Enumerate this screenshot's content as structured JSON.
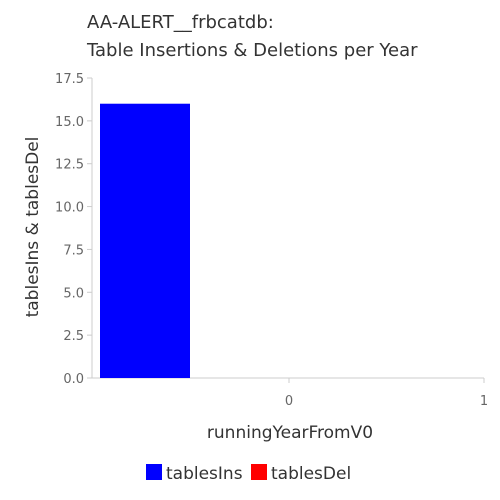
{
  "chart_data": {
    "type": "bar",
    "title_lines": [
      "AA-ALERT__frbcatdb:",
      "Table Insertions & Deletions per Year"
    ],
    "categories": [
      "0",
      "1"
    ],
    "series": [
      {
        "name": "tablesIns",
        "values": [
          16,
          0
        ],
        "color": "#0000ff"
      },
      {
        "name": "tablesDel",
        "values": [
          0,
          0
        ],
        "color": "#ff0000"
      }
    ],
    "xlabel": "runningYearFromV0",
    "ylabel": "tablesIns & tablesDel",
    "ylim": [
      0,
      17.5
    ],
    "yticks": [
      "0.0",
      "2.5",
      "5.0",
      "7.5",
      "10.0",
      "12.5",
      "15.0",
      "17.5"
    ],
    "grid": false,
    "legend_position": "bottom"
  }
}
